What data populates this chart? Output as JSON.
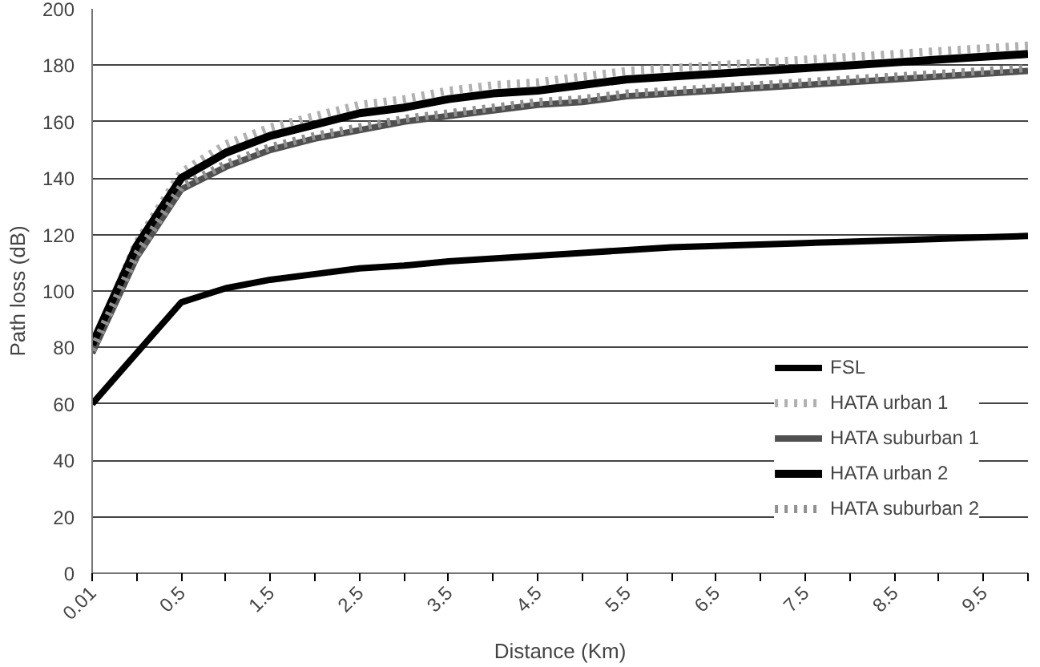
{
  "chart_data": {
    "type": "line",
    "xlabel": "Distance (Km)",
    "ylabel": "Path loss (dB)",
    "categories": [
      "0.01",
      null,
      "0.5",
      null,
      "1.5",
      null,
      "2.5",
      null,
      "3.5",
      null,
      "4.5",
      null,
      "5.5",
      null,
      "6.5",
      null,
      "7.5",
      null,
      "8.5",
      null,
      "9.5",
      null
    ],
    "series": [
      {
        "name": "FSL",
        "color": "#000000",
        "line_style": "solid",
        "values": [
          60,
          78,
          96,
          101,
          104,
          106,
          108,
          109,
          110.5,
          111.5,
          112.5,
          113.5,
          114.5,
          115.5,
          116,
          116.5,
          117,
          117.5,
          118,
          118.5,
          119,
          119.5
        ]
      },
      {
        "name": "HATA urban 1",
        "color": "#b0b0b0",
        "line_style": "dotted",
        "values": [
          80,
          117,
          142,
          152,
          158,
          162,
          166,
          168,
          171,
          173,
          174,
          176,
          178,
          179,
          180,
          181,
          182,
          183,
          184,
          185,
          186,
          187
        ]
      },
      {
        "name": "HATA suburban 1",
        "color": "#505050",
        "line_style": "solid",
        "values": [
          78,
          112,
          136,
          144,
          150,
          154,
          157,
          160,
          162,
          164,
          166,
          167,
          169,
          170,
          171,
          172,
          173,
          174,
          175,
          176,
          177,
          178
        ]
      },
      {
        "name": "HATA urban 2",
        "color": "#000000",
        "line_style": "solid",
        "values": [
          81,
          116,
          140,
          149,
          155,
          159,
          163,
          165,
          168,
          170,
          171,
          173,
          175,
          176,
          177,
          178,
          179,
          180,
          181,
          182,
          183,
          184
        ]
      },
      {
        "name": "HATA suburban 2",
        "color": "#909090",
        "line_style": "dotted",
        "values": [
          79,
          113,
          137,
          145,
          151,
          155,
          158,
          161,
          163,
          165,
          167,
          168,
          170,
          171,
          172,
          173,
          174,
          175,
          176,
          177,
          178,
          179
        ]
      }
    ],
    "ylim": [
      0,
      200
    ],
    "yticks": [
      0,
      20,
      40,
      60,
      80,
      100,
      120,
      140,
      160,
      180,
      200
    ],
    "grid": "y",
    "legend": "bottom right",
    "marker": "none"
  }
}
